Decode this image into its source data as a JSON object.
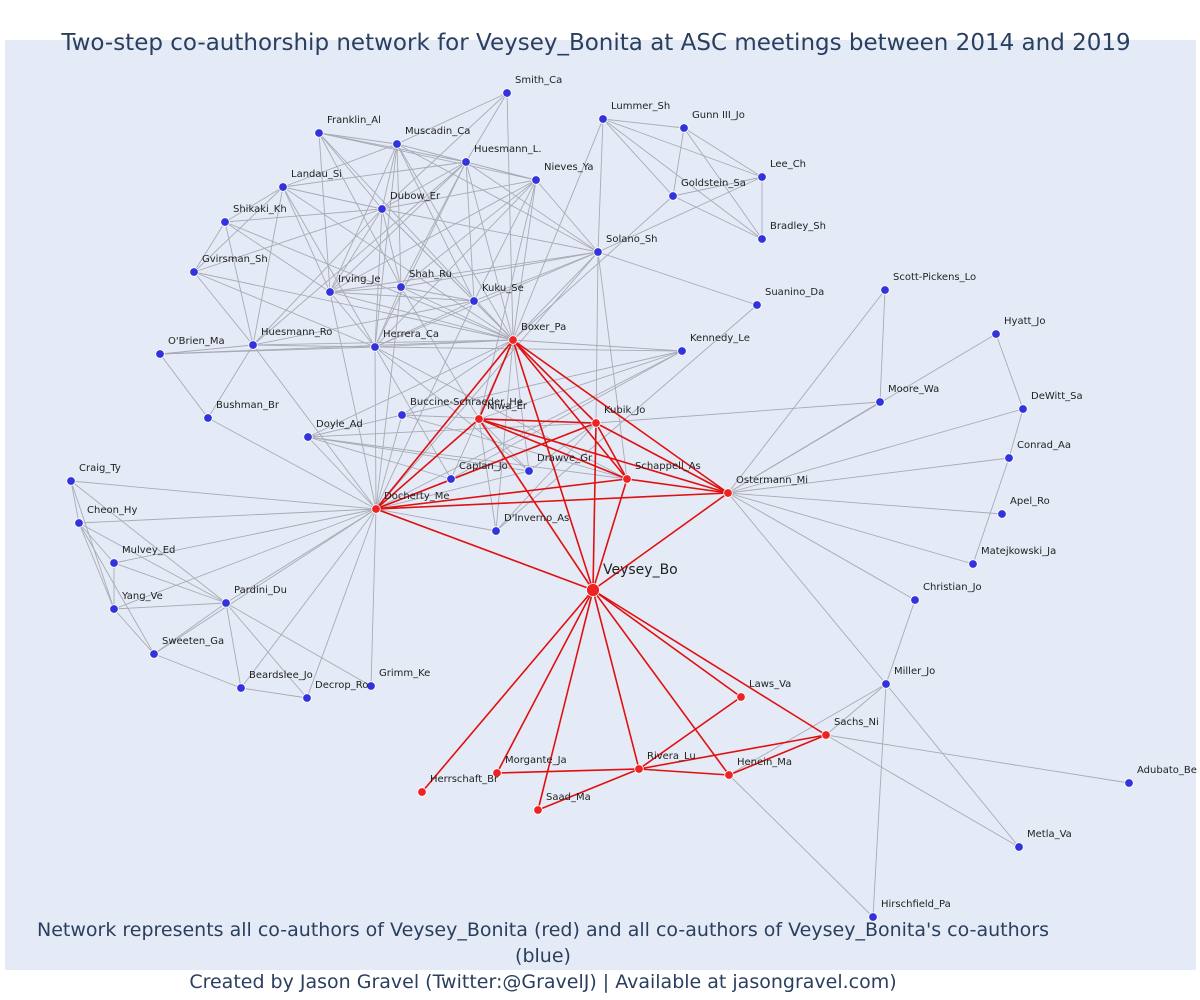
{
  "title": "Two-step co-authorship network for Veysey_Bonita at ASC meetings between 2014 and 2019",
  "footer": {
    "line1": "Network represents all co-authors of Veysey_Bonita (red) and all co-authors of Veysey_Bonita's co-authors (blue)",
    "line2": "Created by Jason Gravel (Twitter:@GravelJ) | Available at jasongravel.com)"
  },
  "colors": {
    "background": "#e5ebf6",
    "red_node": "#ee2222",
    "blue_node": "#3333dd",
    "red_edge": "#e01010",
    "grey_edge": "#a9aab6",
    "title_text": "#2a3f5f"
  },
  "nodes": [
    {
      "id": "Veysey_Bo",
      "group": "center"
    },
    {
      "id": "Boxer_Pa",
      "group": "red"
    },
    {
      "id": "Niwa_Er",
      "group": "red"
    },
    {
      "id": "Kubik_Jo",
      "group": "red"
    },
    {
      "id": "Schappell_As",
      "group": "red"
    },
    {
      "id": "Ostermann_Mi",
      "group": "red"
    },
    {
      "id": "Docherty_Me",
      "group": "red"
    },
    {
      "id": "Laws_Va",
      "group": "red"
    },
    {
      "id": "Sachs_Ni",
      "group": "red"
    },
    {
      "id": "Henein_Ma",
      "group": "red"
    },
    {
      "id": "Rivera_Lu",
      "group": "red"
    },
    {
      "id": "Morgante_Ja",
      "group": "red"
    },
    {
      "id": "Saad_Ma",
      "group": "red"
    },
    {
      "id": "Herrschaft_Br",
      "group": "red"
    },
    {
      "id": "Smith_Ca",
      "group": "blue"
    },
    {
      "id": "Franklin_Al",
      "group": "blue"
    },
    {
      "id": "Muscadin_Ca",
      "group": "blue"
    },
    {
      "id": "Huesmann_L.",
      "group": "blue"
    },
    {
      "id": "Lummer_Sh",
      "group": "blue"
    },
    {
      "id": "Gunn III_Jo",
      "group": "blue"
    },
    {
      "id": "Nieves_Ya",
      "group": "blue"
    },
    {
      "id": "Lee_Ch",
      "group": "blue"
    },
    {
      "id": "Landau_Si",
      "group": "blue"
    },
    {
      "id": "Goldstein_Sa",
      "group": "blue"
    },
    {
      "id": "Dubow_Er",
      "group": "blue"
    },
    {
      "id": "Shikaki_Kh",
      "group": "blue"
    },
    {
      "id": "Bradley_Sh",
      "group": "blue"
    },
    {
      "id": "Solano_Sh",
      "group": "blue"
    },
    {
      "id": "Gvirsman_Sh",
      "group": "blue"
    },
    {
      "id": "Irving_Je",
      "group": "blue"
    },
    {
      "id": "Shah_Ru",
      "group": "blue"
    },
    {
      "id": "Kuku_Se",
      "group": "blue"
    },
    {
      "id": "Scott-Pickens_Lo",
      "group": "blue"
    },
    {
      "id": "Suanino_Da",
      "group": "blue"
    },
    {
      "id": "Hyatt_Jo",
      "group": "blue"
    },
    {
      "id": "Huesmann_Ro",
      "group": "blue"
    },
    {
      "id": "O'Brien_Ma",
      "group": "blue"
    },
    {
      "id": "Herrera_Ca",
      "group": "blue"
    },
    {
      "id": "Kennedy_Le",
      "group": "blue"
    },
    {
      "id": "Moore_Wa",
      "group": "blue"
    },
    {
      "id": "DeWitt_Sa",
      "group": "blue"
    },
    {
      "id": "Bushman_Br",
      "group": "blue"
    },
    {
      "id": "Buccine-Schraeder_He",
      "group": "blue"
    },
    {
      "id": "Doyle_Ad",
      "group": "blue"
    },
    {
      "id": "Conrad_Aa",
      "group": "blue"
    },
    {
      "id": "Caplan_Jo",
      "group": "blue"
    },
    {
      "id": "Drawve_Gr",
      "group": "blue"
    },
    {
      "id": "Craig_Ty",
      "group": "blue"
    },
    {
      "id": "Apel_Ro",
      "group": "blue"
    },
    {
      "id": "Cheon_Hy",
      "group": "blue"
    },
    {
      "id": "D'Inverno_As",
      "group": "blue"
    },
    {
      "id": "Matejkowski_Ja",
      "group": "blue"
    },
    {
      "id": "Mulvey_Ed",
      "group": "blue"
    },
    {
      "id": "Christian_Jo",
      "group": "blue"
    },
    {
      "id": "Pardini_Du",
      "group": "blue"
    },
    {
      "id": "Yang_Ve",
      "group": "blue"
    },
    {
      "id": "Sweeten_Ga",
      "group": "blue"
    },
    {
      "id": "Grimm_Ke",
      "group": "blue"
    },
    {
      "id": "Beardslee_Jo",
      "group": "blue"
    },
    {
      "id": "Decrop_Ro",
      "group": "blue"
    },
    {
      "id": "Miller_Jo",
      "group": "blue"
    },
    {
      "id": "Adubato_Be",
      "group": "blue"
    },
    {
      "id": "Metla_Va",
      "group": "blue"
    },
    {
      "id": "Hirschfield_Pa",
      "group": "blue"
    }
  ],
  "red_edges": [
    [
      "Veysey_Bo",
      "Boxer_Pa"
    ],
    [
      "Veysey_Bo",
      "Niwa_Er"
    ],
    [
      "Veysey_Bo",
      "Kubik_Jo"
    ],
    [
      "Veysey_Bo",
      "Schappell_As"
    ],
    [
      "Veysey_Bo",
      "Ostermann_Mi"
    ],
    [
      "Veysey_Bo",
      "Docherty_Me"
    ],
    [
      "Veysey_Bo",
      "Laws_Va"
    ],
    [
      "Veysey_Bo",
      "Sachs_Ni"
    ],
    [
      "Veysey_Bo",
      "Henein_Ma"
    ],
    [
      "Veysey_Bo",
      "Rivera_Lu"
    ],
    [
      "Veysey_Bo",
      "Morgante_Ja"
    ],
    [
      "Veysey_Bo",
      "Saad_Ma"
    ],
    [
      "Veysey_Bo",
      "Herrschaft_Br"
    ],
    [
      "Boxer_Pa",
      "Niwa_Er"
    ],
    [
      "Boxer_Pa",
      "Kubik_Jo"
    ],
    [
      "Boxer_Pa",
      "Schappell_As"
    ],
    [
      "Boxer_Pa",
      "Ostermann_Mi"
    ],
    [
      "Boxer_Pa",
      "Docherty_Me"
    ],
    [
      "Niwa_Er",
      "Kubik_Jo"
    ],
    [
      "Niwa_Er",
      "Schappell_As"
    ],
    [
      "Niwa_Er",
      "Ostermann_Mi"
    ],
    [
      "Niwa_Er",
      "Docherty_Me"
    ],
    [
      "Kubik_Jo",
      "Schappell_As"
    ],
    [
      "Kubik_Jo",
      "Ostermann_Mi"
    ],
    [
      "Kubik_Jo",
      "Docherty_Me"
    ],
    [
      "Schappell_As",
      "Ostermann_Mi"
    ],
    [
      "Schappell_As",
      "Docherty_Me"
    ],
    [
      "Ostermann_Mi",
      "Docherty_Me"
    ],
    [
      "Rivera_Lu",
      "Laws_Va"
    ],
    [
      "Rivera_Lu",
      "Sachs_Ni"
    ],
    [
      "Rivera_Lu",
      "Henein_Ma"
    ],
    [
      "Rivera_Lu",
      "Morgante_Ja"
    ],
    [
      "Rivera_Lu",
      "Saad_Ma"
    ],
    [
      "Henein_Ma",
      "Sachs_Ni"
    ]
  ],
  "grey_edges": [
    [
      "Boxer_Pa",
      "Smith_Ca"
    ],
    [
      "Boxer_Pa",
      "Franklin_Al"
    ],
    [
      "Boxer_Pa",
      "Muscadin_Ca"
    ],
    [
      "Boxer_Pa",
      "Huesmann_L."
    ],
    [
      "Boxer_Pa",
      "Nieves_Ya"
    ],
    [
      "Boxer_Pa",
      "Landau_Si"
    ],
    [
      "Boxer_Pa",
      "Dubow_Er"
    ],
    [
      "Boxer_Pa",
      "Shikaki_Kh"
    ],
    [
      "Boxer_Pa",
      "Solano_Sh"
    ],
    [
      "Boxer_Pa",
      "Gvirsman_Sh"
    ],
    [
      "Boxer_Pa",
      "Irving_Je"
    ],
    [
      "Boxer_Pa",
      "Shah_Ru"
    ],
    [
      "Boxer_Pa",
      "Kuku_Se"
    ],
    [
      "Boxer_Pa",
      "Huesmann_Ro"
    ],
    [
      "Boxer_Pa",
      "O'Brien_Ma"
    ],
    [
      "Boxer_Pa",
      "Herrera_Ca"
    ],
    [
      "Boxer_Pa",
      "Kennedy_Le"
    ],
    [
      "Boxer_Pa",
      "Doyle_Ad"
    ],
    [
      "Boxer_Pa",
      "Buccine-Schraeder_He"
    ],
    [
      "Boxer_Pa",
      "Goldstein_Sa"
    ],
    [
      "Boxer_Pa",
      "Lummer_Sh"
    ],
    [
      "Boxer_Pa",
      "Drawve_Gr"
    ],
    [
      "Boxer_Pa",
      "Caplan_Jo"
    ],
    [
      "Boxer_Pa",
      "D'Inverno_As"
    ],
    [
      "Smith_Ca",
      "Muscadin_Ca"
    ],
    [
      "Smith_Ca",
      "Huesmann_L."
    ],
    [
      "Smith_Ca",
      "Dubow_Er"
    ],
    [
      "Franklin_Al",
      "Muscadin_Ca"
    ],
    [
      "Franklin_Al",
      "Huesmann_L."
    ],
    [
      "Franklin_Al",
      "Dubow_Er"
    ],
    [
      "Franklin_Al",
      "Nieves_Ya"
    ],
    [
      "Franklin_Al",
      "Irving_Je"
    ],
    [
      "Franklin_Al",
      "Shah_Ru"
    ],
    [
      "Muscadin_Ca",
      "Huesmann_L."
    ],
    [
      "Muscadin_Ca",
      "Nieves_Ya"
    ],
    [
      "Muscadin_Ca",
      "Dubow_Er"
    ],
    [
      "Muscadin_Ca",
      "Landau_Si"
    ],
    [
      "Muscadin_Ca",
      "Irving_Je"
    ],
    [
      "Muscadin_Ca",
      "Shah_Ru"
    ],
    [
      "Muscadin_Ca",
      "Kuku_Se"
    ],
    [
      "Muscadin_Ca",
      "Herrera_Ca"
    ],
    [
      "Muscadin_Ca",
      "Solano_Sh"
    ],
    [
      "Huesmann_L.",
      "Nieves_Ya"
    ],
    [
      "Huesmann_L.",
      "Dubow_Er"
    ],
    [
      "Huesmann_L.",
      "Irving_Je"
    ],
    [
      "Huesmann_L.",
      "Shah_Ru"
    ],
    [
      "Huesmann_L.",
      "Kuku_Se"
    ],
    [
      "Huesmann_L.",
      "Herrera_Ca"
    ],
    [
      "Huesmann_L.",
      "Solano_Sh"
    ],
    [
      "Huesmann_L.",
      "Landau_Si"
    ],
    [
      "Huesmann_L.",
      "Huesmann_Ro"
    ],
    [
      "Nieves_Ya",
      "Dubow_Er"
    ],
    [
      "Nieves_Ya",
      "Solano_Sh"
    ],
    [
      "Nieves_Ya",
      "Irving_Je"
    ],
    [
      "Nieves_Ya",
      "Shah_Ru"
    ],
    [
      "Nieves_Ya",
      "Kuku_Se"
    ],
    [
      "Nieves_Ya",
      "Herrera_Ca"
    ],
    [
      "Nieves_Ya",
      "Niwa_Er"
    ],
    [
      "Landau_Si",
      "Dubow_Er"
    ],
    [
      "Landau_Si",
      "Shikaki_Kh"
    ],
    [
      "Landau_Si",
      "Gvirsman_Sh"
    ],
    [
      "Landau_Si",
      "Huesmann_Ro"
    ],
    [
      "Landau_Si",
      "Herrera_Ca"
    ],
    [
      "Landau_Si",
      "Irving_Je"
    ],
    [
      "Dubow_Er",
      "Shikaki_Kh"
    ],
    [
      "Dubow_Er",
      "Irving_Je"
    ],
    [
      "Dubow_Er",
      "Shah_Ru"
    ],
    [
      "Dubow_Er",
      "Kuku_Se"
    ],
    [
      "Dubow_Er",
      "Herrera_Ca"
    ],
    [
      "Dubow_Er",
      "Solano_Sh"
    ],
    [
      "Dubow_Er",
      "Huesmann_Ro"
    ],
    [
      "Dubow_Er",
      "Gvirsman_Sh"
    ],
    [
      "Shikaki_Kh",
      "Gvirsman_Sh"
    ],
    [
      "Shikaki_Kh",
      "Huesmann_Ro"
    ],
    [
      "Shikaki_Kh",
      "Irving_Je"
    ],
    [
      "Gvirsman_Sh",
      "Huesmann_Ro"
    ],
    [
      "Gvirsman_Sh",
      "Herrera_Ca"
    ],
    [
      "Irving_Je",
      "Shah_Ru"
    ],
    [
      "Irving_Je",
      "Kuku_Se"
    ],
    [
      "Irving_Je",
      "Herrera_Ca"
    ],
    [
      "Irving_Je",
      "Solano_Sh"
    ],
    [
      "Irving_Je",
      "Docherty_Me"
    ],
    [
      "Shah_Ru",
      "Kuku_Se"
    ],
    [
      "Shah_Ru",
      "Herrera_Ca"
    ],
    [
      "Shah_Ru",
      "Solano_Sh"
    ],
    [
      "Shah_Ru",
      "Docherty_Me"
    ],
    [
      "Shah_Ru",
      "Niwa_Er"
    ],
    [
      "Kuku_Se",
      "Herrera_Ca"
    ],
    [
      "Kuku_Se",
      "Solano_Sh"
    ],
    [
      "Kuku_Se",
      "Docherty_Me"
    ],
    [
      "Herrera_Ca",
      "Huesmann_Ro"
    ],
    [
      "Herrera_Ca",
      "O'Brien_Ma"
    ],
    [
      "Herrera_Ca",
      "Docherty_Me"
    ],
    [
      "Herrera_Ca",
      "Kennedy_Le"
    ],
    [
      "Herrera_Ca",
      "Caplan_Jo"
    ],
    [
      "Herrera_Ca",
      "Drawve_Gr"
    ],
    [
      "Herrera_Ca",
      "Schappell_As"
    ],
    [
      "Herrera_Ca",
      "Solano_Sh"
    ],
    [
      "Huesmann_Ro",
      "O'Brien_Ma"
    ],
    [
      "Huesmann_Ro",
      "Bushman_Br"
    ],
    [
      "Huesmann_Ro",
      "Docherty_Me"
    ],
    [
      "Huesmann_Ro",
      "Kuku_Se"
    ],
    [
      "O'Brien_Ma",
      "Bushman_Br"
    ],
    [
      "Solano_Sh",
      "Lummer_Sh"
    ],
    [
      "Solano_Sh",
      "Suanino_Da"
    ],
    [
      "Solano_Sh",
      "Schappell_As"
    ],
    [
      "Solano_Sh",
      "Kubik_Jo"
    ],
    [
      "Solano_Sh",
      "Docherty_Me"
    ],
    [
      "Lummer_Sh",
      "Gunn III_Jo"
    ],
    [
      "Lummer_Sh",
      "Goldstein_Sa"
    ],
    [
      "Lummer_Sh",
      "Lee_Ch"
    ],
    [
      "Lummer_Sh",
      "Bradley_Sh"
    ],
    [
      "Gunn III_Jo",
      "Goldstein_Sa"
    ],
    [
      "Gunn III_Jo",
      "Lee_Ch"
    ],
    [
      "Gunn III_Jo",
      "Bradley_Sh"
    ],
    [
      "Goldstein_Sa",
      "Lee_Ch"
    ],
    [
      "Goldstein_Sa",
      "Bradley_Sh"
    ],
    [
      "Lee_Ch",
      "Bradley_Sh"
    ],
    [
      "Lee_Ch",
      "Solano_Sh"
    ],
    [
      "Suanino_Da",
      "D'Inverno_As"
    ],
    [
      "Kennedy_Le",
      "Docherty_Me"
    ],
    [
      "Kennedy_Le",
      "Buccine-Schraeder_He"
    ],
    [
      "Kennedy_Le",
      "Caplan_Jo"
    ],
    [
      "Kennedy_Le",
      "Niwa_Er"
    ],
    [
      "Buccine-Schraeder_He",
      "Docherty_Me"
    ],
    [
      "Buccine-Schraeder_He",
      "Doyle_Ad"
    ],
    [
      "Buccine-Schraeder_He",
      "Schappell_As"
    ],
    [
      "Buccine-Schraeder_He",
      "Kubik_Jo"
    ],
    [
      "Doyle_Ad",
      "Docherty_Me"
    ],
    [
      "Doyle_Ad",
      "Caplan_Jo"
    ],
    [
      "Doyle_Ad",
      "Schappell_As"
    ],
    [
      "Doyle_Ad",
      "Drawve_Gr"
    ],
    [
      "Doyle_Ad",
      "Kubik_Jo"
    ],
    [
      "Drawve_Gr",
      "Kubik_Jo"
    ],
    [
      "Drawve_Gr",
      "Docherty_Me"
    ],
    [
      "Drawve_Gr",
      "Niwa_Er"
    ],
    [
      "Caplan_Jo",
      "Docherty_Me"
    ],
    [
      "Caplan_Jo",
      "Kubik_Jo"
    ],
    [
      "D'Inverno_As",
      "Docherty_Me"
    ],
    [
      "D'Inverno_As",
      "Niwa_Er"
    ],
    [
      "D'Inverno_As",
      "Kubik_Jo"
    ],
    [
      "Kubik_Jo",
      "Moore_Wa"
    ],
    [
      "Moore_Wa",
      "Scott-Pickens_Lo"
    ],
    [
      "Ostermann_Mi",
      "Moore_Wa"
    ],
    [
      "Ostermann_Mi",
      "Scott-Pickens_Lo"
    ],
    [
      "Ostermann_Mi",
      "Hyatt_Jo"
    ],
    [
      "Ostermann_Mi",
      "DeWitt_Sa"
    ],
    [
      "Ostermann_Mi",
      "Conrad_Aa"
    ],
    [
      "Ostermann_Mi",
      "Apel_Ro"
    ],
    [
      "Ostermann_Mi",
      "Matejkowski_Ja"
    ],
    [
      "Ostermann_Mi",
      "Christian_Jo"
    ],
    [
      "Ostermann_Mi",
      "Miller_Jo"
    ],
    [
      "Hyatt_Jo",
      "DeWitt_Sa"
    ],
    [
      "DeWitt_Sa",
      "Conrad_Aa"
    ],
    [
      "Conrad_Aa",
      "Matejkowski_Ja"
    ],
    [
      "Docherty_Me",
      "Craig_Ty"
    ],
    [
      "Docherty_Me",
      "Cheon_Hy"
    ],
    [
      "Docherty_Me",
      "Mulvey_Ed"
    ],
    [
      "Docherty_Me",
      "Yang_Ve"
    ],
    [
      "Docherty_Me",
      "Pardini_Du"
    ],
    [
      "Docherty_Me",
      "Sweeten_Ga"
    ],
    [
      "Docherty_Me",
      "Beardslee_Jo"
    ],
    [
      "Docherty_Me",
      "Grimm_Ke"
    ],
    [
      "Docherty_Me",
      "Decrop_Ro"
    ],
    [
      "Docherty_Me",
      "Bushman_Br"
    ],
    [
      "Craig_Ty",
      "Cheon_Hy"
    ],
    [
      "Craig_Ty",
      "Pardini_Du"
    ],
    [
      "Craig_Ty",
      "Yang_Ve"
    ],
    [
      "Cheon_Hy",
      "Mulvey_Ed"
    ],
    [
      "Cheon_Hy",
      "Yang_Ve"
    ],
    [
      "Cheon_Hy",
      "Sweeten_Ga"
    ],
    [
      "Cheon_Hy",
      "Pardini_Du"
    ],
    [
      "Mulvey_Ed",
      "Pardini_Du"
    ],
    [
      "Mulvey_Ed",
      "Yang_Ve"
    ],
    [
      "Yang_Ve",
      "Pardini_Du"
    ],
    [
      "Yang_Ve",
      "Sweeten_Ga"
    ],
    [
      "Pardini_Du",
      "Sweeten_Ga"
    ],
    [
      "Pardini_Du",
      "Beardslee_Jo"
    ],
    [
      "Pardini_Du",
      "Decrop_Ro"
    ],
    [
      "Pardini_Du",
      "Grimm_Ke"
    ],
    [
      "Sweeten_Ga",
      "Beardslee_Jo"
    ],
    [
      "Beardslee_Jo",
      "Decrop_Ro"
    ],
    [
      "Christian_Jo",
      "Miller_Jo"
    ],
    [
      "Miller_Jo",
      "Sachs_Ni"
    ],
    [
      "Miller_Jo",
      "Henein_Ma"
    ],
    [
      "Miller_Jo",
      "Metla_Va"
    ],
    [
      "Miller_Jo",
      "Hirschfield_Pa"
    ],
    [
      "Sachs_Ni",
      "Adubato_Be"
    ],
    [
      "Sachs_Ni",
      "Metla_Va"
    ],
    [
      "Henein_Ma",
      "Hirschfield_Pa"
    ]
  ]
}
